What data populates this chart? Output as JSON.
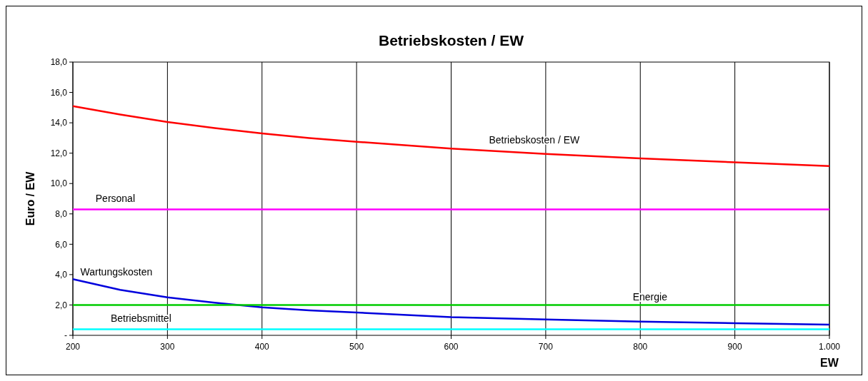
{
  "chart_data": {
    "type": "line",
    "title": "Betriebskosten / EW",
    "xlabel": "EW",
    "ylabel": "Euro / EW",
    "x": [
      200,
      250,
      300,
      350,
      400,
      450,
      500,
      600,
      700,
      800,
      900,
      1000
    ],
    "series": [
      {
        "name": "Betriebskosten / EW",
        "color": "#ff0000",
        "values": [
          15.1,
          14.55,
          14.05,
          13.65,
          13.3,
          13.0,
          12.75,
          12.3,
          11.95,
          11.65,
          11.4,
          11.15
        ]
      },
      {
        "name": "Personal",
        "color": "#ff00ff",
        "values": [
          8.3,
          8.3,
          8.3,
          8.3,
          8.3,
          8.3,
          8.3,
          8.3,
          8.3,
          8.3,
          8.3,
          8.3
        ]
      },
      {
        "name": "Wartungskosten",
        "color": "#0000dd",
        "values": [
          3.7,
          3.0,
          2.5,
          2.15,
          1.85,
          1.65,
          1.5,
          1.2,
          1.05,
          0.9,
          0.8,
          0.7
        ]
      },
      {
        "name": "Energie",
        "color": "#00cc00",
        "values": [
          2.0,
          2.0,
          2.0,
          2.0,
          2.0,
          2.0,
          2.0,
          2.0,
          2.0,
          2.0,
          2.0,
          2.0
        ]
      },
      {
        "name": "Betriebsmittel",
        "color": "#00ffff",
        "values": [
          0.4,
          0.4,
          0.4,
          0.4,
          0.4,
          0.4,
          0.4,
          0.4,
          0.4,
          0.4,
          0.4,
          0.4
        ]
      }
    ],
    "xlim": [
      200,
      1000
    ],
    "xticks": [
      200,
      300,
      400,
      500,
      600,
      700,
      800,
      900,
      {
        "value": 1000,
        "label": "1.000"
      }
    ],
    "ylim": [
      0,
      18
    ],
    "yticks": [
      {
        "value": 0,
        "label": "-"
      },
      {
        "value": 2,
        "label": "2,0"
      },
      {
        "value": 4,
        "label": "4,0"
      },
      {
        "value": 6,
        "label": "6,0"
      },
      {
        "value": 8,
        "label": "8,0"
      },
      {
        "value": 10,
        "label": "10,0"
      },
      {
        "value": 12,
        "label": "12,0"
      },
      {
        "value": 14,
        "label": "14,0"
      },
      {
        "value": 16,
        "label": "16,0"
      },
      {
        "value": 18,
        "label": "18,0"
      }
    ],
    "grid": "x",
    "marker": "none",
    "line_style": "solid"
  }
}
